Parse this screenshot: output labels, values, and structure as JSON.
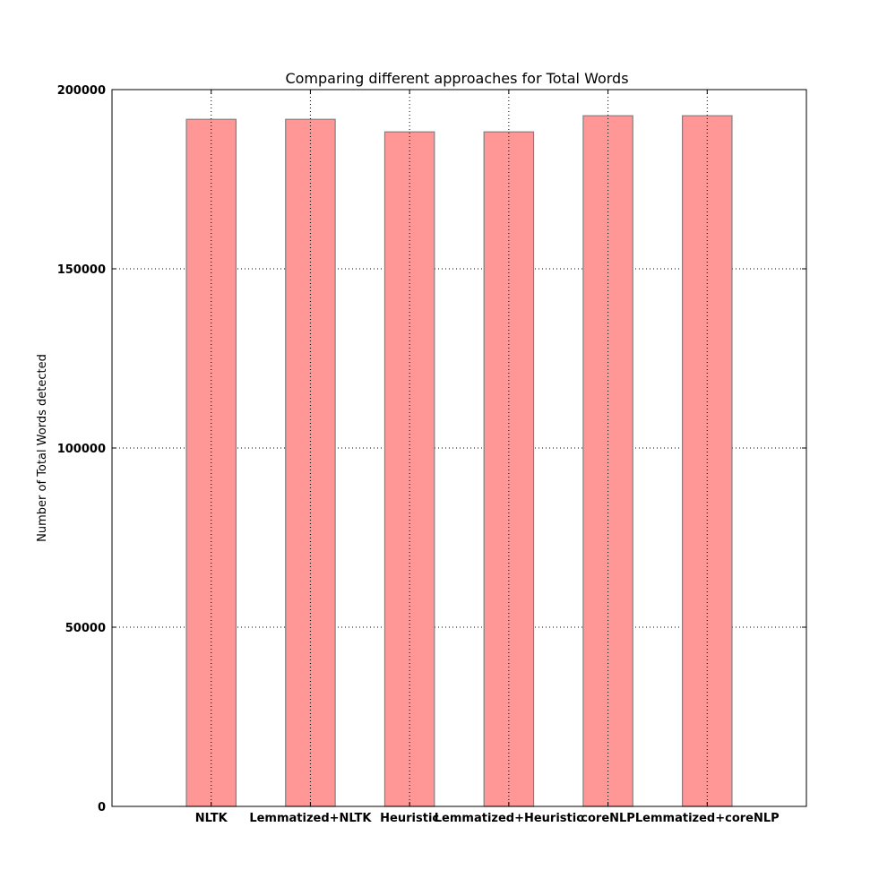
{
  "chart_data": {
    "type": "bar",
    "title": "Comparing different approaches for Total Words",
    "xlabel": "",
    "ylabel": "Number of Total Words detected",
    "categories": [
      "NLTK",
      "Lemmatized+NLTK",
      "Heuristic",
      "Lemmatized+Heuristic",
      "coreNLP",
      "Lemmatized+coreNLP"
    ],
    "values": [
      191700,
      191700,
      188200,
      188200,
      192700,
      192700
    ],
    "ylim": [
      0,
      200000
    ],
    "yticks": [
      "0",
      "50000",
      "100000",
      "150000",
      "200000"
    ],
    "grid": true,
    "legend": false,
    "colors": {
      "bar_fill": "#ff9797",
      "bar_edge": "#808080",
      "grid": "#000000",
      "axis": "#000000"
    }
  }
}
